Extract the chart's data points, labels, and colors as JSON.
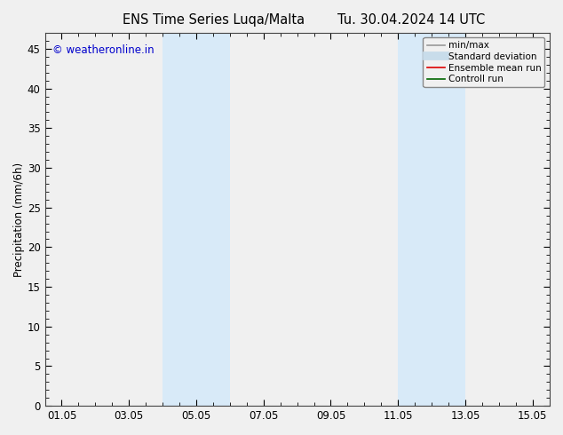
{
  "title_left": "ENS Time Series Luqa/Malta",
  "title_right": "Tu. 30.04.2024 14 UTC",
  "ylabel": "Precipitation (mm/6h)",
  "xlim_start": 0.0,
  "xlim_end": 15.0,
  "ylim": [
    0,
    47
  ],
  "yticks": [
    0,
    5,
    10,
    15,
    20,
    25,
    30,
    35,
    40,
    45
  ],
  "xtick_labels": [
    "01.05",
    "03.05",
    "05.05",
    "07.05",
    "09.05",
    "11.05",
    "13.05",
    "15.05"
  ],
  "xtick_positions": [
    0.5,
    2.5,
    4.5,
    6.5,
    8.5,
    10.5,
    12.5,
    14.5
  ],
  "bg_color": "#f0f0f0",
  "plot_bg_color": "#f0f0f0",
  "shaded_bands": [
    {
      "x_start": 3.5,
      "x_end": 5.5,
      "color": "#d8eaf8"
    },
    {
      "x_start": 10.5,
      "x_end": 12.5,
      "color": "#d8eaf8"
    }
  ],
  "watermark_text": "© weatheronline.in",
  "watermark_color": "#0000cc",
  "legend_items": [
    {
      "label": "min/max",
      "color": "#999999",
      "lw": 1.2,
      "style": "solid",
      "type": "line"
    },
    {
      "label": "Standard deviation",
      "color": "#c8dcea",
      "lw": 7,
      "style": "solid",
      "type": "line"
    },
    {
      "label": "Ensemble mean run",
      "color": "#dd0000",
      "lw": 1.2,
      "style": "solid",
      "type": "line"
    },
    {
      "label": "Controll run",
      "color": "#006600",
      "lw": 1.2,
      "style": "solid",
      "type": "line"
    }
  ],
  "tick_label_fontsize": 8.5,
  "axis_label_fontsize": 8.5,
  "title_fontsize": 10.5,
  "watermark_fontsize": 8.5,
  "legend_fontsize": 7.5
}
